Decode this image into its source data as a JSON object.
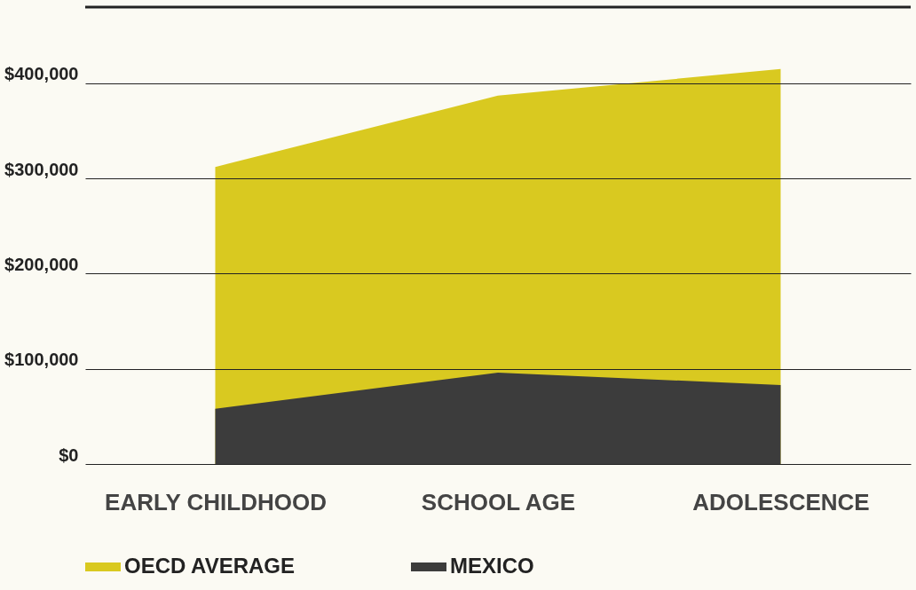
{
  "chart_data": {
    "type": "area",
    "categories": [
      "EARLY CHILDHOOD",
      "SCHOOL AGE",
      "ADOLESCENCE"
    ],
    "series": [
      {
        "name": "OECD AVERAGE",
        "color": "#d9c920",
        "values": [
          312000,
          387000,
          415000
        ]
      },
      {
        "name": "MEXICO",
        "color": "#3c3c3c",
        "values": [
          58000,
          96000,
          83000
        ]
      }
    ],
    "ylim": [
      0,
      480000
    ],
    "yticks": [
      {
        "value": 0,
        "label": "$0"
      },
      {
        "value": 100000,
        "label": "$100,000"
      },
      {
        "value": 200000,
        "label": "$200,000"
      },
      {
        "value": 300000,
        "label": "$300,000"
      },
      {
        "value": 400000,
        "label": "$400,000"
      }
    ],
    "grid": "y",
    "legend": "bottom"
  }
}
